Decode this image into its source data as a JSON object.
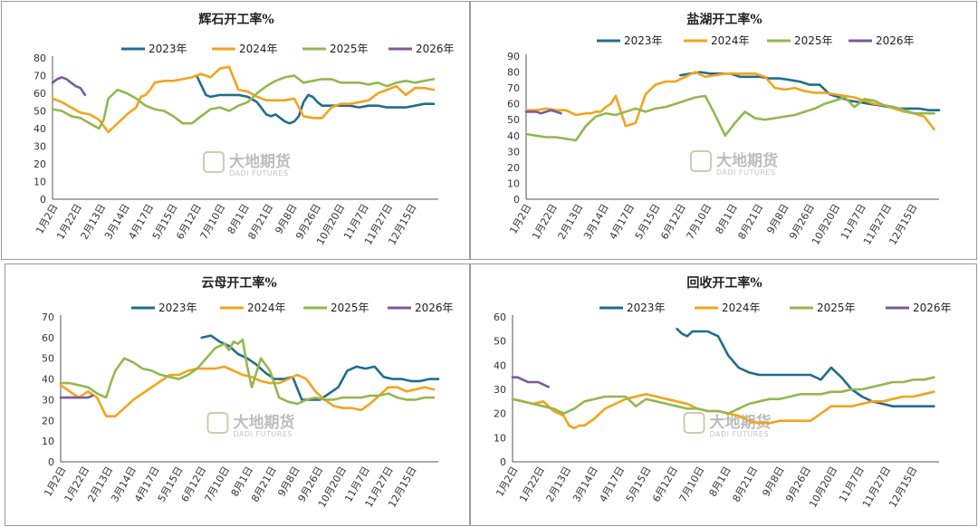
{
  "colors": {
    "2023": "#1f6e8c",
    "2024": "#f4a31c",
    "2025": "#93b84f",
    "2026": "#7a5a9b"
  },
  "watermark": {
    "cn": "大地期货",
    "en": "DADI FUTURES"
  },
  "x_labels": [
    "1月2日",
    "1月22日",
    "2月13日",
    "3月14日",
    "4月17日",
    "5月15日",
    "6月12日",
    "7月10日",
    "8月1日",
    "8月21日",
    "9月8日",
    "9月26日",
    "10月20日",
    "11月7日",
    "11月27日",
    "12月15日"
  ],
  "chart_data": [
    {
      "type": "line",
      "title": "辉石开工率%",
      "ylim": [
        0,
        80
      ],
      "ytick_step": 10,
      "series": [
        {
          "name": "2023年",
          "x": [
            31,
            33,
            34,
            36,
            38,
            40,
            42,
            44,
            46,
            47,
            48,
            49,
            50,
            51,
            52,
            53,
            54,
            55,
            56,
            57,
            58,
            60,
            62,
            64,
            66,
            68,
            70,
            72,
            74,
            76,
            78,
            80,
            82
          ],
          "values": [
            70,
            59,
            58,
            59,
            59,
            59,
            58,
            55,
            48,
            47,
            48,
            46,
            44,
            43,
            44,
            47,
            55,
            59,
            58,
            55,
            53,
            53,
            53,
            53,
            52,
            53,
            53,
            52,
            52,
            52,
            53,
            54,
            54
          ]
        },
        {
          "name": "2024年",
          "x": [
            0,
            2,
            4,
            6,
            8,
            10,
            12,
            14,
            16,
            18,
            19,
            20,
            21,
            22,
            24,
            26,
            28,
            30,
            32,
            34,
            36,
            38,
            40,
            42,
            44,
            46,
            48,
            50,
            52,
            54,
            56,
            58,
            60,
            62,
            64,
            66,
            68,
            70,
            72,
            74,
            76,
            78,
            80,
            82
          ],
          "values": [
            57,
            55,
            52,
            49,
            48,
            45,
            38,
            43,
            48,
            52,
            58,
            59,
            62,
            66,
            67,
            67,
            68,
            69,
            71,
            69,
            74,
            75,
            62,
            61,
            58,
            56,
            56,
            56,
            57,
            47,
            46,
            46,
            52,
            54,
            54,
            55,
            56,
            60,
            62,
            64,
            59,
            63,
            63,
            62
          ]
        },
        {
          "name": "2025年",
          "x": [
            0,
            2,
            4,
            6,
            8,
            10,
            11,
            12,
            14,
            16,
            18,
            20,
            22,
            24,
            26,
            28,
            30,
            32,
            34,
            36,
            38,
            40,
            42,
            44,
            46,
            48,
            50,
            52,
            54,
            56,
            58,
            60,
            62,
            64,
            66,
            68,
            70,
            72,
            74,
            76,
            78,
            80,
            82
          ],
          "values": [
            51,
            50,
            47,
            46,
            43,
            40,
            45,
            57,
            62,
            60,
            57,
            53,
            51,
            50,
            47,
            43,
            43,
            47,
            51,
            52,
            50,
            53,
            55,
            60,
            64,
            67,
            69,
            70,
            66,
            67,
            68,
            68,
            66,
            66,
            66,
            65,
            66,
            64,
            66,
            67,
            66,
            67,
            68
          ]
        },
        {
          "name": "2026年",
          "x": [
            0,
            1,
            2,
            3,
            4,
            5,
            6,
            7
          ],
          "values": [
            66,
            68,
            69,
            68,
            66,
            64,
            63,
            59
          ]
        }
      ]
    },
    {
      "type": "line",
      "title": "盐湖开工率%",
      "ylim": [
        0,
        90
      ],
      "ytick_step": 10,
      "series": [
        {
          "name": "2023年",
          "x": [
            31,
            33,
            35,
            37,
            39,
            41,
            43,
            45,
            47,
            49,
            51,
            53,
            55,
            57,
            59,
            61,
            63,
            65,
            67,
            69,
            71,
            73,
            75,
            77,
            79,
            81,
            83
          ],
          "values": [
            78,
            79,
            80,
            79,
            79,
            79,
            77,
            77,
            77,
            76,
            76,
            75,
            74,
            72,
            72,
            66,
            64,
            62,
            61,
            60,
            59,
            58,
            57,
            57,
            57,
            56,
            56
          ]
        },
        {
          "name": "2024年",
          "x": [
            0,
            2,
            4,
            6,
            8,
            10,
            12,
            13,
            14,
            15,
            16,
            17,
            18,
            20,
            22,
            24,
            26,
            28,
            30,
            32,
            34,
            36,
            38,
            40,
            42,
            44,
            46,
            48,
            50,
            52,
            54,
            56,
            58,
            60,
            62,
            64,
            66,
            68,
            70,
            72,
            74,
            76,
            78,
            80,
            82
          ],
          "values": [
            56,
            56,
            57,
            56,
            56,
            53,
            54,
            54,
            55,
            55,
            58,
            60,
            65,
            46,
            48,
            66,
            72,
            74,
            74,
            77,
            80,
            77,
            78,
            79,
            79,
            79,
            79,
            77,
            70,
            69,
            70,
            68,
            67,
            67,
            66,
            65,
            64,
            62,
            60,
            59,
            57,
            55,
            54,
            52,
            44
          ]
        },
        {
          "name": "2025年",
          "x": [
            0,
            2,
            4,
            6,
            8,
            10,
            12,
            14,
            16,
            18,
            20,
            22,
            24,
            26,
            28,
            30,
            32,
            34,
            36,
            38,
            40,
            42,
            44,
            46,
            48,
            50,
            52,
            54,
            56,
            58,
            60,
            62,
            64,
            66,
            68,
            70,
            72,
            74,
            76,
            78,
            80,
            82
          ],
          "values": [
            41,
            40,
            39,
            39,
            38,
            37,
            46,
            52,
            54,
            53,
            55,
            57,
            55,
            57,
            58,
            60,
            62,
            64,
            65,
            53,
            40,
            48,
            55,
            51,
            50,
            51,
            52,
            53,
            55,
            57,
            60,
            62,
            64,
            58,
            63,
            62,
            59,
            58,
            56,
            54,
            54,
            54
          ]
        },
        {
          "name": "2026年",
          "x": [
            0,
            1,
            2,
            3,
            4,
            5,
            6,
            7
          ],
          "values": [
            55,
            55,
            55,
            54,
            55,
            56,
            55,
            54
          ]
        }
      ]
    },
    {
      "type": "line",
      "title": "云母开工率%",
      "ylim": [
        0,
        70
      ],
      "ytick_step": 10,
      "series": [
        {
          "name": "2023年",
          "x": [
            31,
            33,
            35,
            37,
            39,
            41,
            43,
            45,
            47,
            49,
            51,
            53,
            55,
            57,
            59,
            61,
            63,
            65,
            67,
            69,
            71,
            73,
            75,
            77,
            79,
            81,
            83
          ],
          "values": [
            60,
            61,
            58,
            56,
            52,
            50,
            47,
            43,
            40,
            40,
            41,
            30,
            30,
            30,
            33,
            36,
            44,
            46,
            45,
            46,
            41,
            40,
            40,
            39,
            39,
            40,
            40
          ]
        },
        {
          "name": "2024年",
          "x": [
            0,
            2,
            4,
            6,
            8,
            10,
            12,
            14,
            16,
            18,
            20,
            22,
            24,
            26,
            28,
            30,
            32,
            34,
            36,
            38,
            40,
            42,
            44,
            46,
            48,
            50,
            52,
            54,
            56,
            58,
            60,
            62,
            64,
            66,
            68,
            70,
            72,
            74,
            76,
            78,
            80,
            82
          ],
          "values": [
            37,
            34,
            31,
            34,
            31,
            22,
            22,
            26,
            30,
            33,
            36,
            39,
            42,
            42,
            44,
            45,
            45,
            45,
            46,
            44,
            42,
            41,
            39,
            38,
            38,
            40,
            42,
            40,
            34,
            30,
            27,
            26,
            26,
            25,
            28,
            32,
            36,
            36,
            34,
            35,
            36,
            35
          ]
        },
        {
          "name": "2025年",
          "x": [
            0,
            2,
            4,
            6,
            8,
            10,
            11,
            12,
            14,
            16,
            18,
            20,
            22,
            24,
            26,
            28,
            30,
            32,
            34,
            36,
            37,
            38,
            39,
            40,
            41,
            42,
            44,
            46,
            48,
            50,
            52,
            54,
            56,
            58,
            60,
            62,
            64,
            66,
            68,
            70,
            72,
            74,
            76,
            78,
            80,
            82
          ],
          "values": [
            38,
            38,
            37,
            36,
            33,
            31,
            38,
            44,
            50,
            48,
            45,
            44,
            42,
            41,
            40,
            42,
            45,
            50,
            55,
            57,
            54,
            58,
            57,
            59,
            46,
            36,
            50,
            44,
            31,
            29,
            28,
            30,
            31,
            30,
            30,
            31,
            31,
            31,
            32,
            32,
            33,
            31,
            30,
            30,
            31,
            31
          ]
        },
        {
          "name": "2026年",
          "x": [
            0,
            1,
            2,
            3,
            4,
            5,
            6,
            7
          ],
          "values": [
            31,
            31,
            31,
            31,
            31,
            31,
            31,
            32
          ]
        }
      ]
    },
    {
      "type": "line",
      "title": "回收开工率%",
      "ylim": [
        0,
        60
      ],
      "ytick_step": 10,
      "series": [
        {
          "name": "2023年",
          "x": [
            32,
            33,
            34,
            35,
            36,
            37,
            38,
            39,
            40,
            42,
            44,
            46,
            48,
            50,
            52,
            54,
            56,
            58,
            60,
            62,
            64,
            66,
            68,
            70,
            72,
            74,
            76,
            78,
            80,
            82
          ],
          "values": [
            55,
            53,
            52,
            54,
            54,
            54,
            54,
            53,
            52,
            44,
            39,
            37,
            36,
            36,
            36,
            36,
            36,
            36,
            34,
            39,
            35,
            30,
            27,
            25,
            24,
            23,
            23,
            23,
            23,
            23
          ]
        },
        {
          "name": "2024年",
          "x": [
            0,
            2,
            4,
            6,
            8,
            10,
            11,
            12,
            13,
            14,
            16,
            18,
            20,
            22,
            24,
            26,
            28,
            30,
            32,
            34,
            36,
            38,
            40,
            42,
            44,
            46,
            48,
            50,
            52,
            54,
            56,
            58,
            60,
            62,
            64,
            66,
            68,
            70,
            72,
            74,
            76,
            78,
            80,
            82
          ],
          "values": [
            26,
            25,
            24,
            25,
            21,
            19,
            15,
            14,
            15,
            15,
            18,
            22,
            24,
            26,
            27,
            28,
            27,
            26,
            25,
            24,
            22,
            21,
            21,
            20,
            19,
            17,
            16,
            16,
            17,
            17,
            17,
            17,
            20,
            23,
            23,
            23,
            24,
            25,
            25,
            26,
            27,
            27,
            28,
            29
          ]
        },
        {
          "name": "2025年",
          "x": [
            0,
            2,
            4,
            6,
            8,
            10,
            12,
            14,
            16,
            18,
            20,
            22,
            24,
            26,
            28,
            30,
            32,
            34,
            36,
            38,
            40,
            42,
            44,
            46,
            48,
            50,
            52,
            54,
            56,
            58,
            60,
            62,
            64,
            66,
            68,
            70,
            72,
            74,
            76,
            78,
            80,
            82
          ],
          "values": [
            26,
            25,
            24,
            23,
            22,
            20,
            22,
            25,
            26,
            27,
            27,
            27,
            23,
            26,
            25,
            24,
            23,
            22,
            22,
            21,
            21,
            20,
            22,
            24,
            25,
            26,
            26,
            27,
            28,
            28,
            28,
            29,
            29,
            30,
            30,
            31,
            32,
            33,
            33,
            34,
            34,
            35
          ]
        },
        {
          "name": "2026年",
          "x": [
            0,
            1,
            2,
            3,
            4,
            5,
            6,
            7
          ],
          "values": [
            35,
            35,
            34,
            33,
            33,
            33,
            32,
            31
          ]
        }
      ]
    }
  ]
}
